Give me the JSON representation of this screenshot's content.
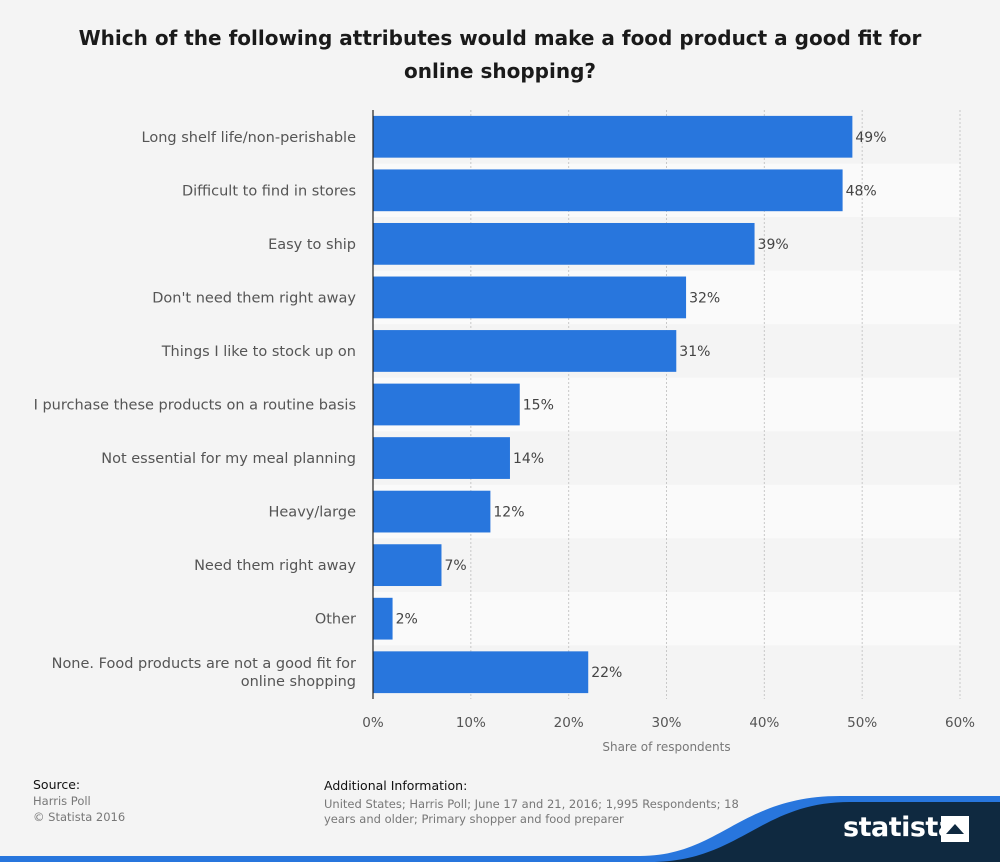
{
  "chart_data": {
    "type": "bar",
    "orientation": "horizontal",
    "title": "Which of the following attributes would make a food product a good fit for online shopping?",
    "categories": [
      [
        "Long shelf life/non-perishable"
      ],
      [
        "Difficult to find in stores"
      ],
      [
        "Easy to ship"
      ],
      [
        "Don't need them right away"
      ],
      [
        "Things I like to stock up on"
      ],
      [
        "I purchase these products on a routine basis"
      ],
      [
        "Not essential for my meal planning"
      ],
      [
        "Heavy/large"
      ],
      [
        "Need them right away"
      ],
      [
        "Other"
      ],
      [
        "None. Food products are not a good fit for",
        "online shopping"
      ]
    ],
    "values": [
      49,
      48,
      39,
      32,
      31,
      15,
      14,
      12,
      7,
      2,
      22
    ],
    "value_labels": [
      "49%",
      "48%",
      "39%",
      "32%",
      "31%",
      "15%",
      "14%",
      "12%",
      "7%",
      "2%",
      "22%"
    ],
    "xlabel": "Share of respondents",
    "xlim": [
      0,
      60
    ],
    "xticks": [
      0,
      10,
      20,
      30,
      40,
      50,
      60
    ],
    "xtick_labels": [
      "0%",
      "10%",
      "20%",
      "30%",
      "40%",
      "50%",
      "60%"
    ],
    "grid": true,
    "bar_color": "#2876dd"
  },
  "footer": {
    "source_heading": "Source:",
    "source_lines": [
      "Harris Poll",
      "© Statista 2016"
    ],
    "info_heading": "Additional Information:",
    "info_lines": [
      "United States; Harris Poll; June 17 and 21, 2016; 1,995 Respondents; 18",
      "years and older; Primary shopper and food preparer"
    ]
  },
  "logo": {
    "text": "statista",
    "icon": "statista-logo-icon"
  }
}
